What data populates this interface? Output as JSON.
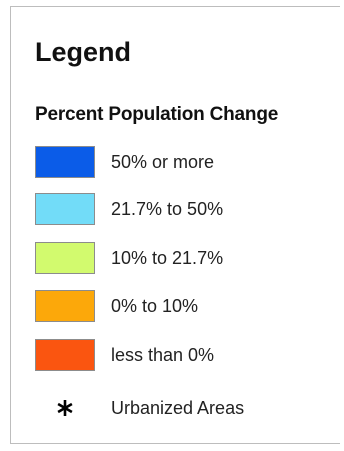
{
  "legend": {
    "title": "Legend",
    "section_title": "Percent Population Change",
    "items": [
      {
        "label": "50% or more",
        "color": "#0b5ce8"
      },
      {
        "label": "21.7% to 50%",
        "color": "#72dcf8"
      },
      {
        "label": "10% to 21.7%",
        "color": "#d2fa6e"
      },
      {
        "label": "0% to 10%",
        "color": "#fca80a"
      },
      {
        "label": "less than 0%",
        "color": "#fa5510"
      }
    ],
    "urbanized": {
      "label": "Urbanized Areas",
      "icon": "asterisk-icon"
    }
  }
}
